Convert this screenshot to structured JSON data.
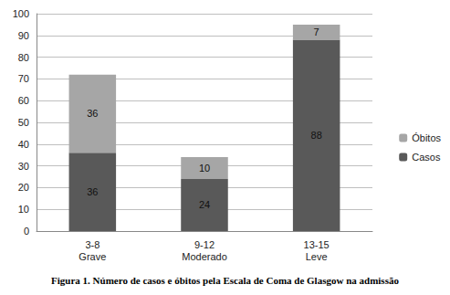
{
  "chart_data": {
    "type": "bar",
    "title": "Figura 1. Número de casos e óbitos pela Escala de Coma de Glasgow na admissão",
    "categories": [
      "3-8\nGrave",
      "9-12\nModerado",
      "13-15\nLeve"
    ],
    "series": [
      {
        "name": "Casos",
        "color": "#595959",
        "values": [
          36,
          24,
          88
        ]
      },
      {
        "name": "Óbitos",
        "color": "#a6a6a6",
        "values": [
          36,
          10,
          7
        ]
      }
    ],
    "stacked": true,
    "data_labels": true,
    "legend": "right",
    "grid": true,
    "ylim": [
      0,
      100
    ],
    "yticks": [
      0,
      10,
      20,
      30,
      40,
      50,
      60,
      70,
      80,
      90,
      100
    ]
  }
}
